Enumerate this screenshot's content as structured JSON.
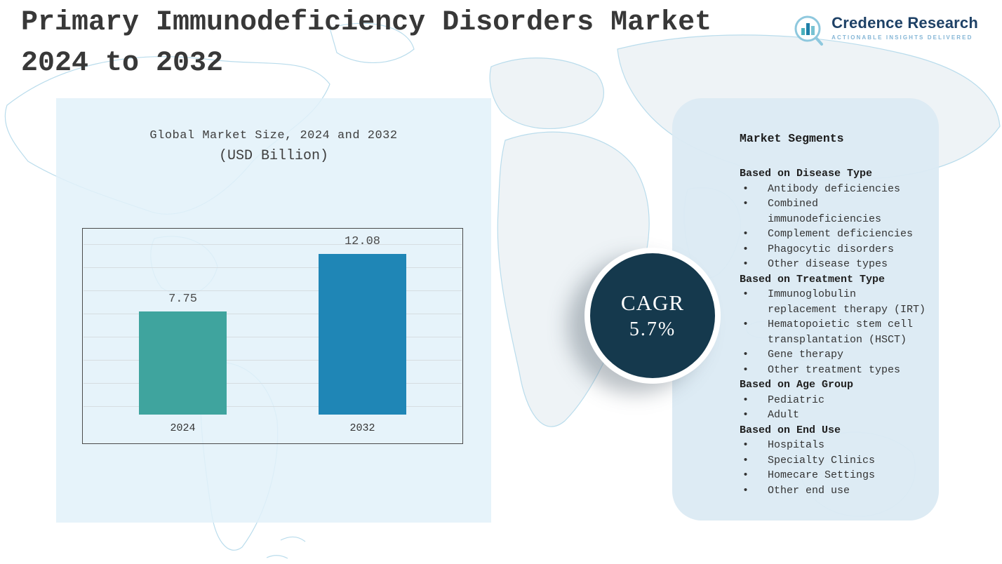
{
  "header": {
    "title_line1": "Primary Immunodeficiency Disorders Market",
    "title_line2": "2024 to 2032",
    "brand": "Credence Research",
    "tagline": "Actionable Insights Delivered"
  },
  "chart_panel": {
    "title_line1": "Global Market Size, 2024 and 2032",
    "title_line2": "(USD Billion)"
  },
  "chart_data": {
    "type": "bar",
    "categories": [
      "2024",
      "2032"
    ],
    "values": [
      7.75,
      12.08
    ],
    "data_labels": [
      "7.75",
      "12.08"
    ],
    "title": "Global Market Size, 2024 and 2032",
    "subtitle": "(USD Billion)",
    "xlabel": "",
    "ylabel": "",
    "ylim": [
      0,
      14
    ],
    "grid": true,
    "legend": false,
    "bar_colors": [
      "#3fa49e",
      "#1f86b6"
    ]
  },
  "cagr": {
    "label": "CAGR",
    "value": "5.7%"
  },
  "segments": {
    "title": "Market Segments",
    "groups": [
      {
        "heading": "Based on Disease Type",
        "items": [
          "Antibody deficiencies",
          "Combined immunodeficiencies",
          "Complement deficiencies",
          "Phagocytic disorders",
          "Other disease types"
        ]
      },
      {
        "heading": "Based on Treatment Type",
        "items": [
          "Immunoglobulin replacement therapy (IRT)",
          "Hematopoietic stem cell transplantation (HSCT)",
          "Gene therapy",
          "Other treatment types"
        ]
      },
      {
        "heading": "Based on Age Group",
        "items": [
          "Pediatric",
          "Adult"
        ]
      },
      {
        "heading": "Based on End Use",
        "items": [
          "Hospitals",
          "Specialty Clinics",
          "Homecare Settings",
          "Other end use"
        ]
      }
    ]
  }
}
